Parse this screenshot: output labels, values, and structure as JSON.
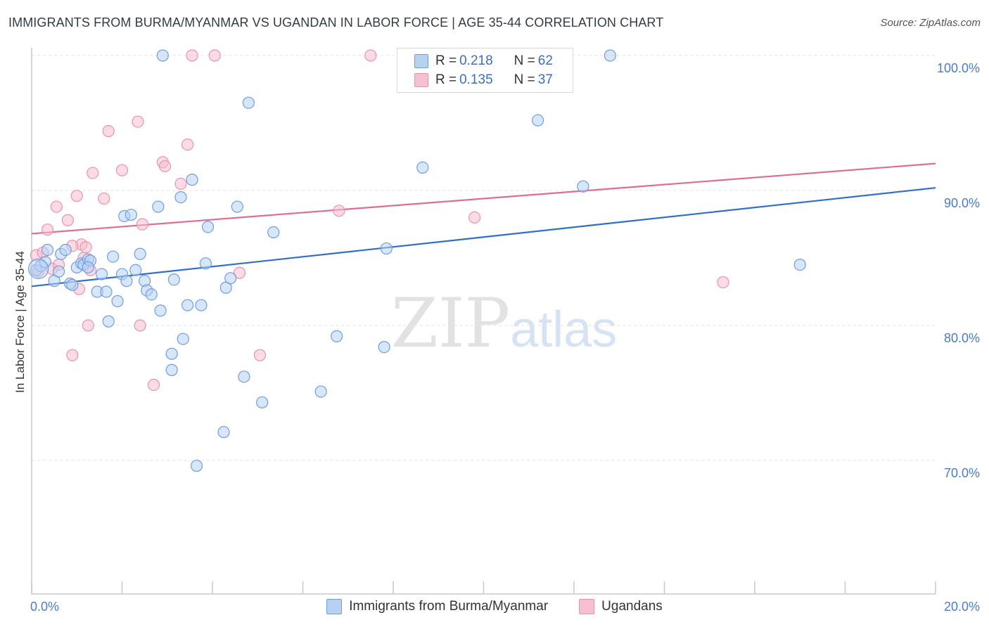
{
  "header": {
    "title": "IMMIGRANTS FROM BURMA/MYANMAR VS UGANDAN IN LABOR FORCE | AGE 35-44 CORRELATION CHART",
    "source": "Source: ZipAtlas.com"
  },
  "watermark": {
    "zip": "ZIP",
    "atlas": "atlas"
  },
  "legend": {
    "rows": [
      {
        "r_label": "R =",
        "r_value": "0.218",
        "n_label": "N =",
        "n_value": "62"
      },
      {
        "r_label": "R =",
        "r_value": "0.135",
        "n_label": "N =",
        "n_value": "37"
      }
    ]
  },
  "colors": {
    "blue_fill": "#b7d1f3",
    "blue_stroke": "#6f9ee0",
    "blue_line": "#2e6fcc",
    "pink_fill": "#f7c0d0",
    "pink_stroke": "#eb92ad",
    "pink_line": "#e06c95",
    "grid": "#e3e3e3",
    "axis": "#c8c8c8"
  },
  "chart_data": {
    "type": "scatter",
    "title": "IMMIGRANTS FROM BURMA/MYANMAR VS UGANDAN IN LABOR FORCE | AGE 35-44 CORRELATION CHART",
    "xlabel": "",
    "ylabel": "In Labor Force | Age 35-44",
    "xlim": [
      0,
      20
    ],
    "ylim": [
      60,
      100
    ],
    "x_tick_labels": [
      {
        "value": 0,
        "label": "0.0%"
      },
      {
        "value": 20,
        "label": "20.0%"
      }
    ],
    "y_tick_labels": [
      {
        "value": 100,
        "label": "100.0%"
      },
      {
        "value": 90,
        "label": "90.0%"
      },
      {
        "value": 80,
        "label": "80.0%"
      },
      {
        "value": 70,
        "label": "70.0%"
      }
    ],
    "series": [
      {
        "name": "Immigrants from Burma/Myanmar",
        "R": 0.218,
        "N": 62,
        "trend": {
          "x": [
            0,
            20
          ],
          "y": [
            82.9,
            90.2
          ]
        },
        "points": [
          [
            0.1,
            84.1
          ],
          [
            0.2,
            84.4
          ],
          [
            0.3,
            84.7
          ],
          [
            0.35,
            85.6
          ],
          [
            0.5,
            83.3
          ],
          [
            0.6,
            84.0
          ],
          [
            0.65,
            85.3
          ],
          [
            0.75,
            85.6
          ],
          [
            0.85,
            83.1
          ],
          [
            0.9,
            83.0
          ],
          [
            1.0,
            84.3
          ],
          [
            1.1,
            84.6
          ],
          [
            1.15,
            84.5
          ],
          [
            1.25,
            84.9
          ],
          [
            1.3,
            84.8
          ],
          [
            1.45,
            82.5
          ],
          [
            1.55,
            83.8
          ],
          [
            1.65,
            82.5
          ],
          [
            1.7,
            80.3
          ],
          [
            1.8,
            85.1
          ],
          [
            1.9,
            81.8
          ],
          [
            2.0,
            83.8
          ],
          [
            2.05,
            88.1
          ],
          [
            2.1,
            83.3
          ],
          [
            2.2,
            88.2
          ],
          [
            2.3,
            84.1
          ],
          [
            2.4,
            85.3
          ],
          [
            2.5,
            83.3
          ],
          [
            2.55,
            82.6
          ],
          [
            2.65,
            82.3
          ],
          [
            2.8,
            88.8
          ],
          [
            2.85,
            81.1
          ],
          [
            2.9,
            100.0
          ],
          [
            3.1,
            77.9
          ],
          [
            3.1,
            76.7
          ],
          [
            3.15,
            83.4
          ],
          [
            3.3,
            89.5
          ],
          [
            3.35,
            79.0
          ],
          [
            3.45,
            81.5
          ],
          [
            3.55,
            90.8
          ],
          [
            3.65,
            69.6
          ],
          [
            3.75,
            81.5
          ],
          [
            3.85,
            84.6
          ],
          [
            3.9,
            87.3
          ],
          [
            4.3,
            82.8
          ],
          [
            4.4,
            83.5
          ],
          [
            4.55,
            88.8
          ],
          [
            4.7,
            76.2
          ],
          [
            4.8,
            96.5
          ],
          [
            5.1,
            74.3
          ],
          [
            5.35,
            86.9
          ],
          [
            6.4,
            75.1
          ],
          [
            6.75,
            79.2
          ],
          [
            7.8,
            78.4
          ],
          [
            7.85,
            85.7
          ],
          [
            8.65,
            91.7
          ],
          [
            11.2,
            95.2
          ],
          [
            12.2,
            90.3
          ],
          [
            12.8,
            100.0
          ],
          [
            17.0,
            84.5
          ],
          [
            4.25,
            72.1
          ],
          [
            1.25,
            84.3
          ]
        ]
      },
      {
        "name": "Ugandans",
        "R": 0.135,
        "N": 37,
        "trend": {
          "x": [
            0,
            20
          ],
          "y": [
            86.8,
            92.0
          ]
        },
        "points": [
          [
            0.1,
            85.2
          ],
          [
            0.25,
            85.4
          ],
          [
            0.35,
            87.1
          ],
          [
            0.45,
            84.2
          ],
          [
            0.55,
            88.8
          ],
          [
            0.8,
            87.8
          ],
          [
            0.9,
            77.8
          ],
          [
            1.0,
            89.6
          ],
          [
            1.05,
            82.7
          ],
          [
            1.1,
            86.0
          ],
          [
            1.15,
            85.0
          ],
          [
            1.2,
            85.8
          ],
          [
            1.25,
            80.0
          ],
          [
            1.3,
            84.1
          ],
          [
            1.35,
            91.3
          ],
          [
            1.6,
            89.4
          ],
          [
            1.7,
            94.4
          ],
          [
            2.0,
            91.5
          ],
          [
            2.35,
            95.1
          ],
          [
            2.4,
            80.0
          ],
          [
            2.45,
            87.5
          ],
          [
            2.7,
            75.6
          ],
          [
            2.9,
            92.1
          ],
          [
            2.95,
            91.8
          ],
          [
            3.3,
            90.5
          ],
          [
            3.45,
            93.4
          ],
          [
            3.55,
            100.0
          ],
          [
            4.05,
            100.0
          ],
          [
            4.6,
            83.9
          ],
          [
            5.05,
            77.8
          ],
          [
            6.8,
            88.5
          ],
          [
            7.5,
            100.0
          ],
          [
            9.8,
            88.0
          ],
          [
            15.3,
            83.2
          ],
          [
            0.6,
            84.5
          ],
          [
            0.15,
            84.0
          ],
          [
            0.9,
            85.9
          ]
        ]
      }
    ]
  },
  "bottom_legend": [
    {
      "label": "Immigrants from Burma/Myanmar"
    },
    {
      "label": "Ugandans"
    }
  ]
}
